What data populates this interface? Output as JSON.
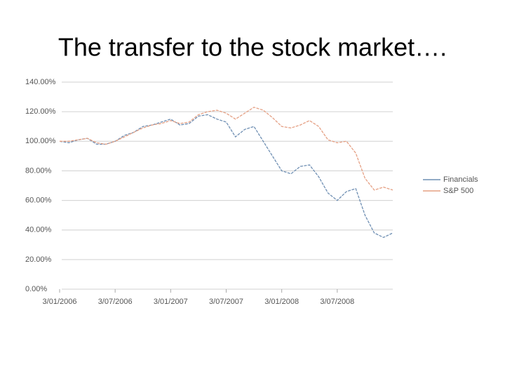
{
  "chart_data": {
    "type": "line",
    "title": "The transfer to the stock market….",
    "categories": [
      "3/01/2006",
      null,
      null,
      null,
      null,
      null,
      "3/07/2006",
      null,
      null,
      null,
      null,
      null,
      "3/01/2007",
      null,
      null,
      null,
      null,
      null,
      "3/07/2007",
      null,
      null,
      null,
      null,
      null,
      "3/01/2008",
      null,
      null,
      null,
      null,
      null,
      "3/07/2008",
      null,
      null,
      null,
      null,
      null,
      null
    ],
    "series": [
      {
        "name": "Financials",
        "color": "#6f8fb3",
        "values": [
          100,
          99,
          101,
          102,
          98,
          98,
          100,
          104,
          106,
          110,
          111,
          113,
          115,
          111,
          112,
          117,
          118,
          115,
          113,
          103,
          108,
          110,
          100,
          90,
          80,
          78,
          83,
          84,
          76,
          65,
          60,
          66,
          68,
          50,
          38,
          35,
          38
        ]
      },
      {
        "name": "S&P 500",
        "color": "#e5a084",
        "values": [
          100,
          100,
          101,
          102,
          99,
          98,
          100,
          103,
          106,
          109,
          111,
          112,
          114,
          112,
          113,
          118,
          120,
          121,
          119,
          115,
          119,
          123,
          121,
          116,
          110,
          109,
          111,
          114,
          110,
          101,
          99,
          100,
          92,
          75,
          67,
          69,
          67
        ]
      }
    ],
    "ylim": [
      0,
      140
    ],
    "yticks": [
      {
        "value": 0,
        "label": "0.00%"
      },
      {
        "value": 20,
        "label": "20.00%"
      },
      {
        "value": 40,
        "label": "40.00%"
      },
      {
        "value": 60,
        "label": "60.00%"
      },
      {
        "value": 80,
        "label": "80.00%"
      },
      {
        "value": 100,
        "label": "100.00%"
      },
      {
        "value": 120,
        "label": "120.00%"
      },
      {
        "value": 140,
        "label": "140.00%"
      }
    ],
    "grid": true,
    "legend": "right"
  }
}
